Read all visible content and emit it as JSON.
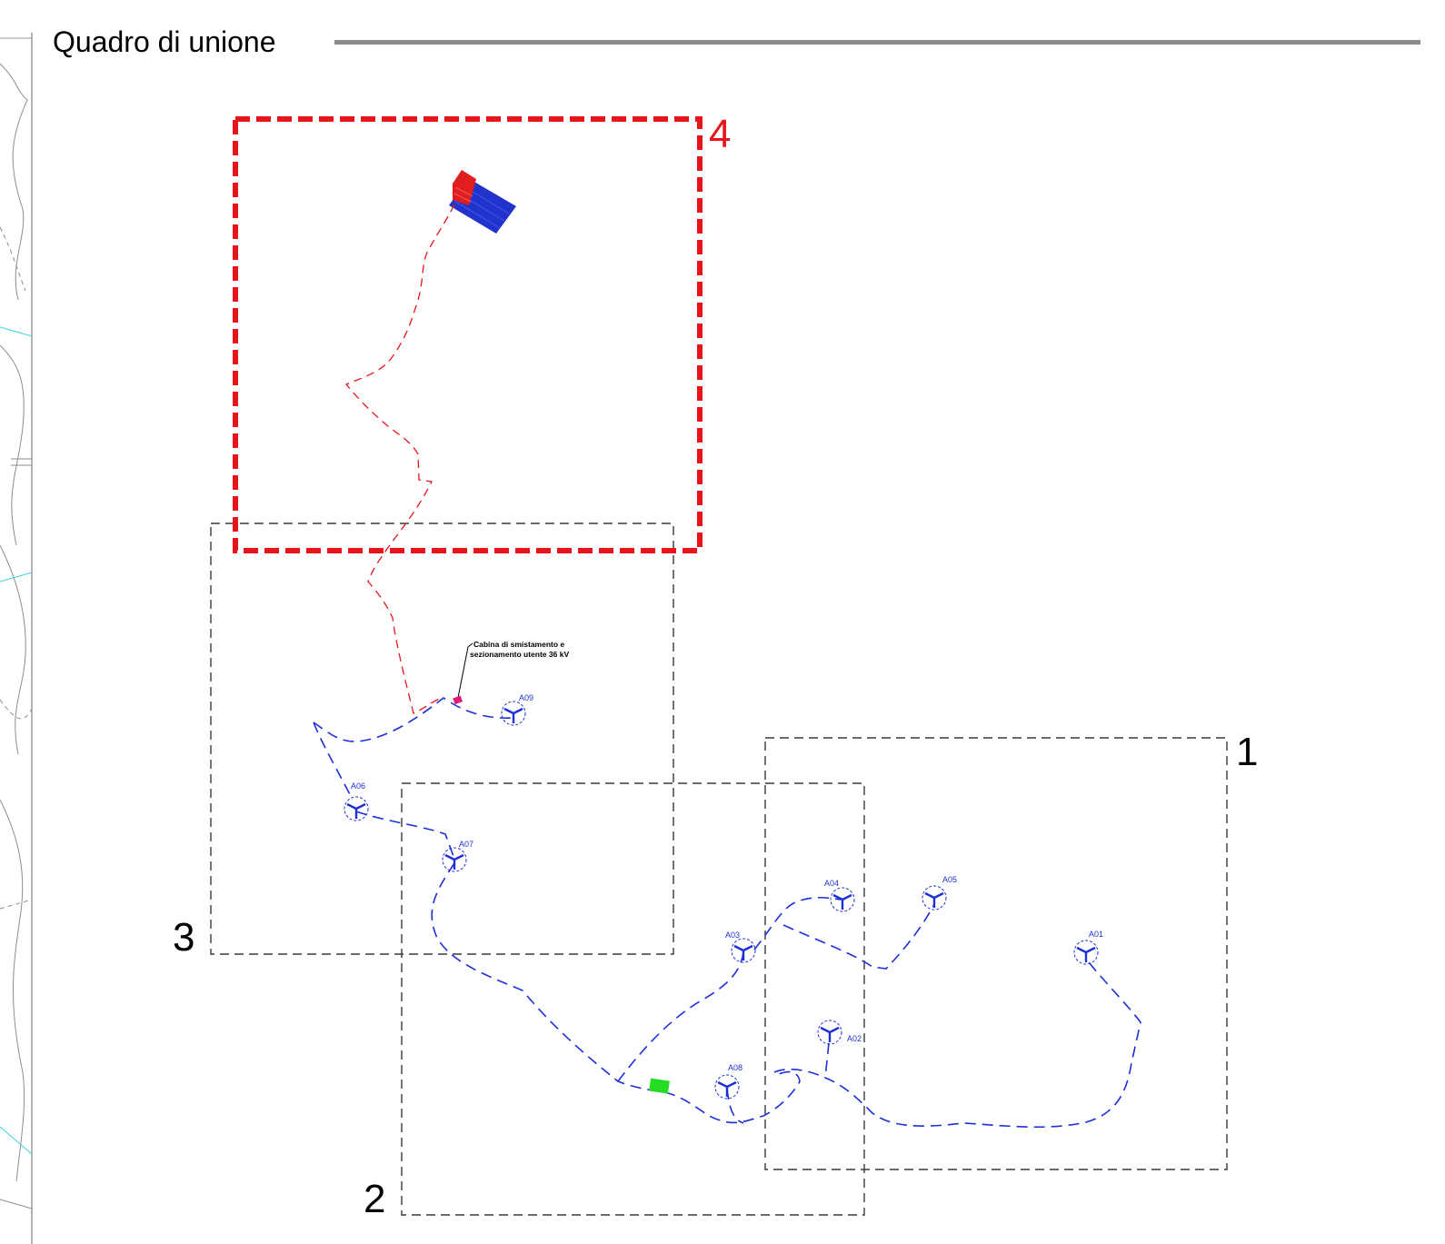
{
  "header": {
    "title": "Quadro di unione"
  },
  "sheets": [
    {
      "number": "1",
      "highlighted": false
    },
    {
      "number": "2",
      "highlighted": false
    },
    {
      "number": "3",
      "highlighted": false
    },
    {
      "number": "4",
      "highlighted": true
    }
  ],
  "turbines": [
    "A01",
    "A02",
    "A03",
    "A04",
    "A05",
    "A06",
    "A07",
    "A08",
    "A09"
  ],
  "callout": {
    "line1": "Cabina di smistamento e",
    "line2": "sezionamento utente 36 kV"
  },
  "colors": {
    "highlight_sheet": "#e8141b",
    "sheet_frame": "#3a3a3a",
    "cable_internal": "#1d2fd6",
    "cable_connection": "#e8141b",
    "substation_blue": "#2233cc",
    "substation_red": "#e01e1e",
    "station_green": "#22dd22",
    "terrain_contour": "#9a9a9a",
    "water": "#38d2e6"
  }
}
